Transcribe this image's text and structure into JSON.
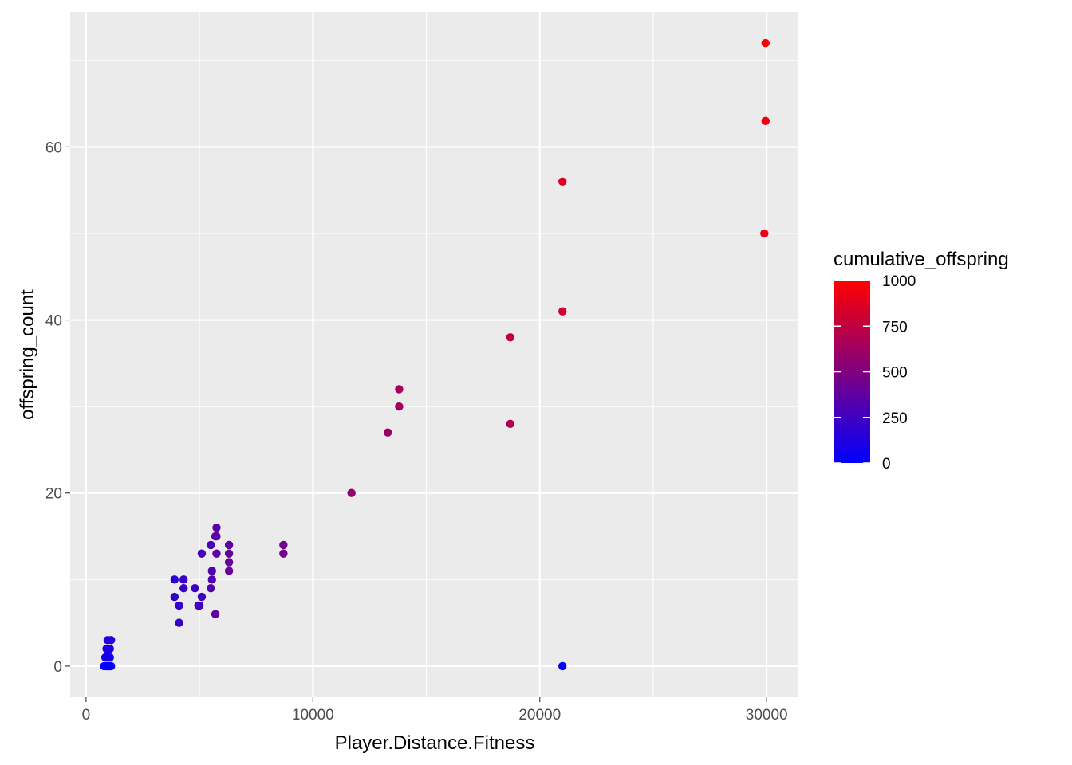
{
  "chart_data": {
    "type": "scatter",
    "title": "",
    "xlabel": "Player.Distance.Fitness",
    "ylabel": "offspring_count",
    "xlim": [
      -700,
      31400
    ],
    "ylim": [
      -3.6,
      75.6
    ],
    "x_ticks": [
      0,
      10000,
      20000,
      30000
    ],
    "x_tick_labels": [
      "0",
      "10000",
      "20000",
      "30000"
    ],
    "y_ticks": [
      0,
      20,
      40,
      60
    ],
    "y_tick_labels": [
      "0",
      "20",
      "40",
      "60"
    ],
    "grid": true,
    "legend": {
      "title": "cumulative_offspring",
      "position": "right",
      "min": 0,
      "max": 1000,
      "ticks": [
        0,
        250,
        500,
        750,
        1000
      ],
      "tick_labels": [
        "0",
        "250",
        "500",
        "750",
        "1000"
      ],
      "low_color": "#0000ff",
      "high_color": "#ff0000"
    },
    "points": [
      {
        "x": 800,
        "y": 0,
        "c": 5
      },
      {
        "x": 900,
        "y": 0,
        "c": 10
      },
      {
        "x": 950,
        "y": 0,
        "c": 15
      },
      {
        "x": 1000,
        "y": 0,
        "c": 20
      },
      {
        "x": 1050,
        "y": 0,
        "c": 25
      },
      {
        "x": 1100,
        "y": 0,
        "c": 30
      },
      {
        "x": 850,
        "y": 1,
        "c": 60
      },
      {
        "x": 950,
        "y": 1,
        "c": 70
      },
      {
        "x": 1050,
        "y": 1,
        "c": 80
      },
      {
        "x": 900,
        "y": 2,
        "c": 100
      },
      {
        "x": 1050,
        "y": 2,
        "c": 110
      },
      {
        "x": 950,
        "y": 3,
        "c": 130
      },
      {
        "x": 1100,
        "y": 3,
        "c": 140
      },
      {
        "x": 3900,
        "y": 10,
        "c": 180
      },
      {
        "x": 3900,
        "y": 8,
        "c": 190
      },
      {
        "x": 4100,
        "y": 7,
        "c": 200
      },
      {
        "x": 4100,
        "y": 5,
        "c": 210
      },
      {
        "x": 4300,
        "y": 10,
        "c": 220
      },
      {
        "x": 4300,
        "y": 9,
        "c": 230
      },
      {
        "x": 4800,
        "y": 9,
        "c": 240
      },
      {
        "x": 5000,
        "y": 7,
        "c": 250
      },
      {
        "x": 4950,
        "y": 7,
        "c": 255
      },
      {
        "x": 5100,
        "y": 8,
        "c": 260
      },
      {
        "x": 5100,
        "y": 13,
        "c": 280
      },
      {
        "x": 5500,
        "y": 14,
        "c": 300
      },
      {
        "x": 5550,
        "y": 11,
        "c": 310
      },
      {
        "x": 5550,
        "y": 10,
        "c": 320
      },
      {
        "x": 5500,
        "y": 9,
        "c": 330
      },
      {
        "x": 5750,
        "y": 16,
        "c": 350
      },
      {
        "x": 5750,
        "y": 15,
        "c": 355
      },
      {
        "x": 5700,
        "y": 15,
        "c": 360
      },
      {
        "x": 5750,
        "y": 13,
        "c": 370
      },
      {
        "x": 5700,
        "y": 6,
        "c": 380
      },
      {
        "x": 6300,
        "y": 14,
        "c": 390
      },
      {
        "x": 6300,
        "y": 13,
        "c": 395
      },
      {
        "x": 6300,
        "y": 12,
        "c": 400
      },
      {
        "x": 6300,
        "y": 11,
        "c": 405
      },
      {
        "x": 8700,
        "y": 14,
        "c": 450
      },
      {
        "x": 8700,
        "y": 13,
        "c": 455
      },
      {
        "x": 11700,
        "y": 20,
        "c": 560
      },
      {
        "x": 13300,
        "y": 27,
        "c": 600
      },
      {
        "x": 13800,
        "y": 30,
        "c": 630
      },
      {
        "x": 13800,
        "y": 32,
        "c": 650
      },
      {
        "x": 18700,
        "y": 28,
        "c": 700
      },
      {
        "x": 18700,
        "y": 38,
        "c": 760
      },
      {
        "x": 21000,
        "y": 41,
        "c": 810
      },
      {
        "x": 21000,
        "y": 56,
        "c": 870
      },
      {
        "x": 21000,
        "y": 0,
        "c": 0
      },
      {
        "x": 29900,
        "y": 50,
        "c": 900
      },
      {
        "x": 29950,
        "y": 63,
        "c": 940
      },
      {
        "x": 29950,
        "y": 72,
        "c": 990
      }
    ]
  }
}
